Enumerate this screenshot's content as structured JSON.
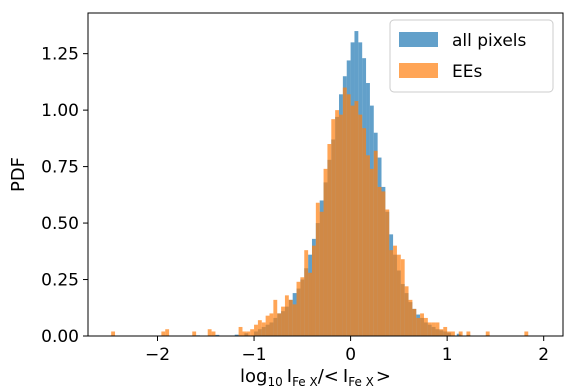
{
  "chart_data": {
    "type": "bar",
    "ylabel": "PDF",
    "xlabel": {
      "prefix": "log",
      "base": "10",
      "intensity": "I",
      "sub": "Fe X",
      "sep": "/<",
      "close": ">"
    },
    "xlim": [
      -2.72,
      2.2
    ],
    "ylim": [
      0,
      1.43
    ],
    "x_ticks": [
      -2,
      -1,
      0,
      1,
      2
    ],
    "x_tick_labels": [
      "−2",
      "−1",
      "0",
      "1",
      "2"
    ],
    "y_ticks": [
      0,
      0.25,
      0.5,
      0.75,
      1.0,
      1.25
    ],
    "y_tick_labels": [
      "0.00",
      "0.25",
      "0.50",
      "0.75",
      "1.00",
      "1.25"
    ],
    "legend_position": "top-right",
    "grid": false,
    "bin_width": 0.04,
    "series": [
      {
        "name": "all pixels",
        "color": "#1f77b4",
        "opacity": 0.7,
        "bins": [
          [
            -1.6,
            0.003
          ],
          [
            -1.4,
            0.005
          ],
          [
            -1.2,
            0.006
          ],
          [
            -1.1,
            0.012
          ],
          [
            -1.0,
            0.02
          ],
          [
            -0.96,
            0.03
          ],
          [
            -0.92,
            0.04
          ],
          [
            -0.88,
            0.05
          ],
          [
            -0.84,
            0.06
          ],
          [
            -0.8,
            0.08
          ],
          [
            -0.76,
            0.1
          ],
          [
            -0.72,
            0.11
          ],
          [
            -0.68,
            0.13
          ],
          [
            -0.64,
            0.16
          ],
          [
            -0.6,
            0.19
          ],
          [
            -0.56,
            0.21
          ],
          [
            -0.52,
            0.25
          ],
          [
            -0.48,
            0.3
          ],
          [
            -0.44,
            0.36
          ],
          [
            -0.4,
            0.43
          ],
          [
            -0.36,
            0.5
          ],
          [
            -0.32,
            0.6
          ],
          [
            -0.28,
            0.68
          ],
          [
            -0.24,
            0.78
          ],
          [
            -0.2,
            0.87
          ],
          [
            -0.16,
            0.97
          ],
          [
            -0.12,
            1.07
          ],
          [
            -0.08,
            1.15
          ],
          [
            -0.04,
            1.22
          ],
          [
            0.0,
            1.3
          ],
          [
            0.04,
            1.35
          ],
          [
            0.08,
            1.3
          ],
          [
            0.12,
            1.23
          ],
          [
            0.16,
            1.12
          ],
          [
            0.2,
            1.02
          ],
          [
            0.24,
            0.9
          ],
          [
            0.28,
            0.79
          ],
          [
            0.32,
            0.66
          ],
          [
            0.36,
            0.55
          ],
          [
            0.4,
            0.45
          ],
          [
            0.44,
            0.36
          ],
          [
            0.48,
            0.29
          ],
          [
            0.52,
            0.23
          ],
          [
            0.56,
            0.19
          ],
          [
            0.6,
            0.15
          ],
          [
            0.64,
            0.12
          ],
          [
            0.68,
            0.095
          ],
          [
            0.72,
            0.08
          ],
          [
            0.76,
            0.06
          ],
          [
            0.8,
            0.05
          ],
          [
            0.84,
            0.04
          ],
          [
            0.88,
            0.03
          ],
          [
            0.92,
            0.025
          ],
          [
            0.96,
            0.02
          ],
          [
            1.0,
            0.015
          ],
          [
            1.1,
            0.01
          ],
          [
            1.2,
            0.005
          ],
          [
            1.4,
            0.003
          ]
        ]
      },
      {
        "name": "EEs",
        "color": "#ff7f0e",
        "opacity": 0.7,
        "bins": [
          [
            -2.48,
            0.02
          ],
          [
            -1.96,
            0.02
          ],
          [
            -1.92,
            0.03
          ],
          [
            -1.64,
            0.02
          ],
          [
            -1.48,
            0.03
          ],
          [
            -1.44,
            0.02
          ],
          [
            -1.16,
            0.04
          ],
          [
            -1.12,
            0.02
          ],
          [
            -1.08,
            0.02
          ],
          [
            -1.04,
            0.03
          ],
          [
            -1.0,
            0.05
          ],
          [
            -0.96,
            0.07
          ],
          [
            -0.92,
            0.06
          ],
          [
            -0.88,
            0.09
          ],
          [
            -0.84,
            0.1
          ],
          [
            -0.8,
            0.16
          ],
          [
            -0.76,
            0.1
          ],
          [
            -0.72,
            0.13
          ],
          [
            -0.68,
            0.18
          ],
          [
            -0.64,
            0.16
          ],
          [
            -0.6,
            0.14
          ],
          [
            -0.56,
            0.24
          ],
          [
            -0.52,
            0.26
          ],
          [
            -0.48,
            0.38
          ],
          [
            -0.44,
            0.28
          ],
          [
            -0.4,
            0.4
          ],
          [
            -0.36,
            0.59
          ],
          [
            -0.32,
            0.55
          ],
          [
            -0.28,
            0.74
          ],
          [
            -0.24,
            0.85
          ],
          [
            -0.2,
            0.96
          ],
          [
            -0.16,
            1.0
          ],
          [
            -0.12,
            0.98
          ],
          [
            -0.08,
            1.1
          ],
          [
            -0.04,
            1.07
          ],
          [
            0.0,
            1.02
          ],
          [
            0.04,
            1.04
          ],
          [
            0.08,
            0.98
          ],
          [
            0.12,
            0.92
          ],
          [
            0.16,
            0.8
          ],
          [
            0.2,
            0.74
          ],
          [
            0.24,
            0.82
          ],
          [
            0.28,
            0.66
          ],
          [
            0.32,
            0.64
          ],
          [
            0.36,
            0.56
          ],
          [
            0.4,
            0.38
          ],
          [
            0.44,
            0.4
          ],
          [
            0.48,
            0.36
          ],
          [
            0.52,
            0.34
          ],
          [
            0.56,
            0.22
          ],
          [
            0.6,
            0.16
          ],
          [
            0.64,
            0.12
          ],
          [
            0.68,
            0.08
          ],
          [
            0.72,
            0.1
          ],
          [
            0.76,
            0.08
          ],
          [
            0.8,
            0.06
          ],
          [
            0.84,
            0.06
          ],
          [
            0.88,
            0.06
          ],
          [
            0.92,
            0.03
          ],
          [
            0.96,
            0.04
          ],
          [
            1.0,
            0.02
          ],
          [
            1.04,
            0.02
          ],
          [
            1.12,
            0.02
          ],
          [
            1.2,
            0.02
          ],
          [
            1.4,
            0.02
          ],
          [
            1.8,
            0.02
          ]
        ]
      }
    ]
  }
}
